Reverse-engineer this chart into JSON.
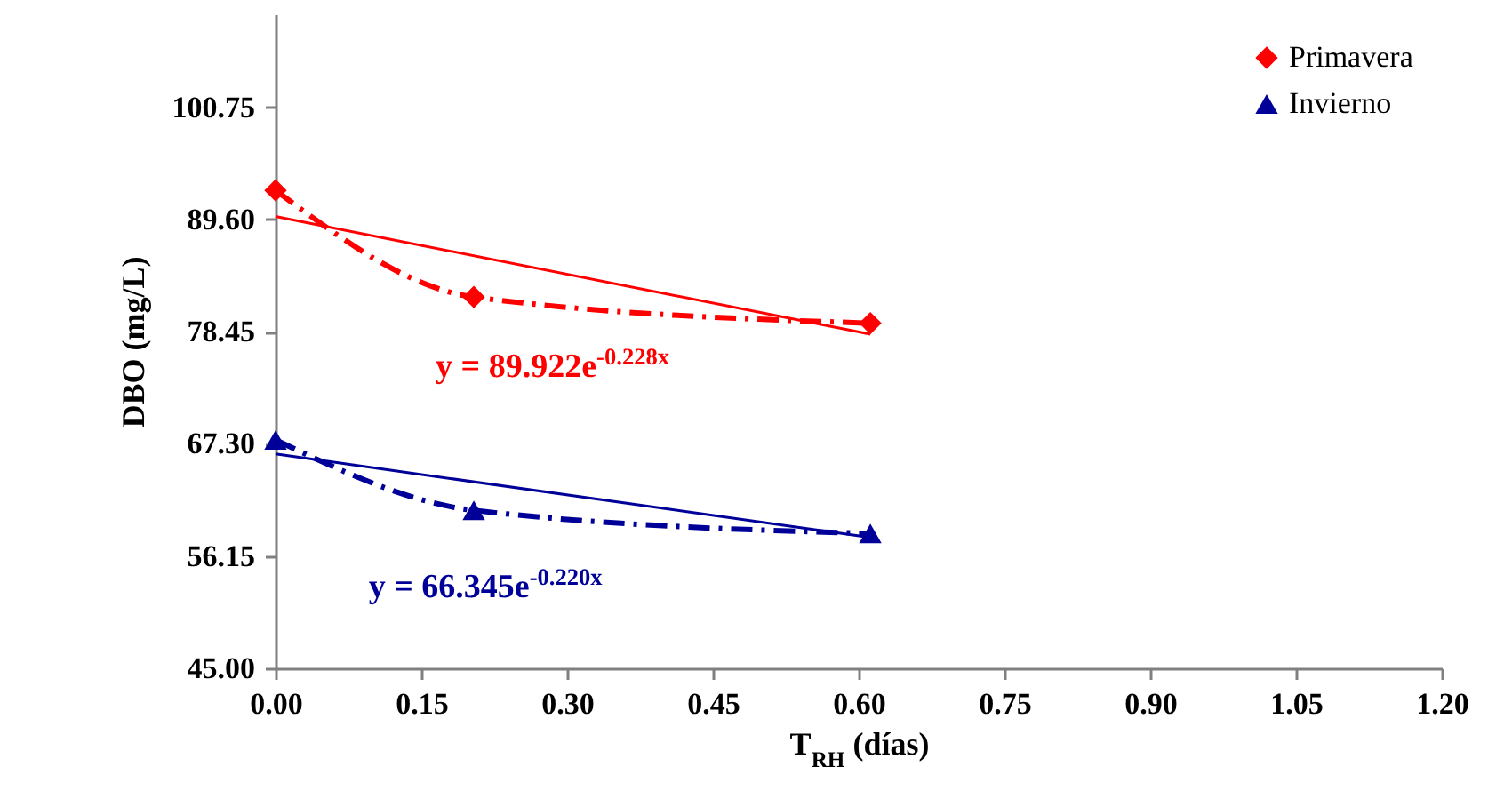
{
  "chart_data": {
    "type": "line",
    "xlabel": "T$_{RH}$ (días)",
    "ylabel": "DBO (mg/L)",
    "xlim": [
      0,
      1.2
    ],
    "ylim": [
      45,
      110
    ],
    "xticks": [
      {
        "value": 0,
        "label": "0.00"
      },
      {
        "value": 0.15,
        "label": "0.15"
      },
      {
        "value": 0.3,
        "label": "0.30"
      },
      {
        "value": 0.45,
        "label": "0.45"
      },
      {
        "value": 0.6,
        "label": "0.60"
      },
      {
        "value": 0.75,
        "label": "0.75"
      },
      {
        "value": 0.9,
        "label": "0.90"
      },
      {
        "value": 1.05,
        "label": "1.05"
      },
      {
        "value": 1.2,
        "label": "1.20"
      }
    ],
    "yticks": [
      {
        "value": 45,
        "label": "45.00"
      },
      {
        "value": 56.15,
        "label": "56.15"
      },
      {
        "value": 67.3,
        "label": "67.30"
      },
      {
        "value": 78.45,
        "label": "78.45"
      },
      {
        "value": 89.6,
        "label": "89.60"
      },
      {
        "value": 100.75,
        "label": "100.75"
      }
    ],
    "grid": false,
    "legend": "top right",
    "series": [
      {
        "name": "Primavera",
        "color": "#ff0000",
        "x": [
          0,
          0.204,
          0.612
        ],
        "values": [
          92.5,
          81.9,
          79.3
        ],
        "marker": "diamond",
        "line_style": "dashed"
      },
      {
        "name": "Invierno",
        "color": "#000099",
        "x": [
          0,
          0.204,
          0.612
        ],
        "values": [
          67.7,
          60.7,
          58.4
        ],
        "marker": "triangle",
        "line_style": "dashed"
      },
      {
        "type": "line",
        "color": "#ff0000",
        "x": [
          0,
          0.612
        ],
        "values": [
          89.9,
          78.2
        ],
        "marker": "none",
        "line_style": "solid"
      },
      {
        "type": "line",
        "color": "#000099",
        "x": [
          0,
          0.612
        ],
        "values": [
          66.3,
          58.0
        ],
        "marker": "none",
        "line_style": "solid"
      }
    ],
    "annotations": [
      "y = 89.922e$^{-0.228x}$",
      "y = 66.345e$^{-0.220x}$"
    ]
  }
}
